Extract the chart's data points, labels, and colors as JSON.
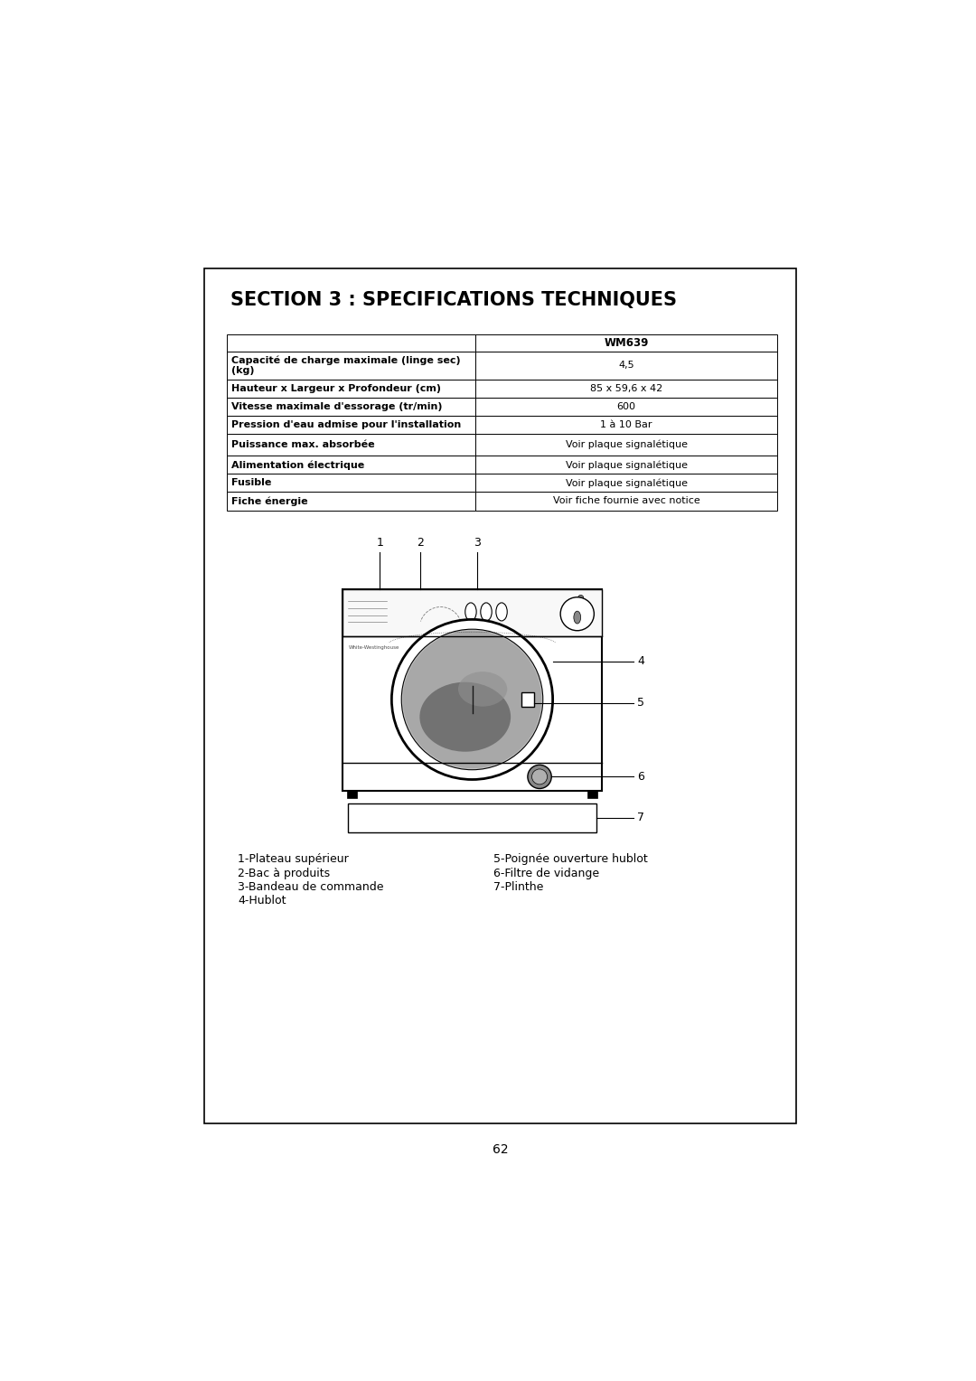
{
  "title": "SECTION 3 : SPECIFICATIONS TECHNIQUES",
  "page_number": "62",
  "table_header": "WM639",
  "table_rows": [
    [
      "Capacité de charge maximale (linge sec)\n(kg)",
      "4,5"
    ],
    [
      "Hauteur x Largeur x Profondeur (cm)",
      "85 x 59,6 x 42"
    ],
    [
      "Vitesse maximale d'essorage (tr/min)",
      "600"
    ],
    [
      "Pression d'eau admise pour l'installation",
      "1 à 10 Bar"
    ],
    [
      "Puissance max. absorbée",
      "Voir plaque signalétique"
    ],
    [
      "Alimentation électrique",
      "Voir plaque signalétique"
    ],
    [
      "Fusible",
      "Voir plaque signalétique"
    ],
    [
      "Fiche énergie",
      "Voir fiche fournie avec notice"
    ]
  ],
  "labels_left": [
    "1-Plateau supérieur",
    "2-Bac à produits",
    "3-Bandeau de commande",
    "4-Hublot"
  ],
  "labels_right": [
    "5-Poignée ouverture hublot",
    "6-Filtre de vidange",
    "7-Plinthe"
  ],
  "bg_color": "#ffffff",
  "border_color": "#000000",
  "text_color": "#000000"
}
